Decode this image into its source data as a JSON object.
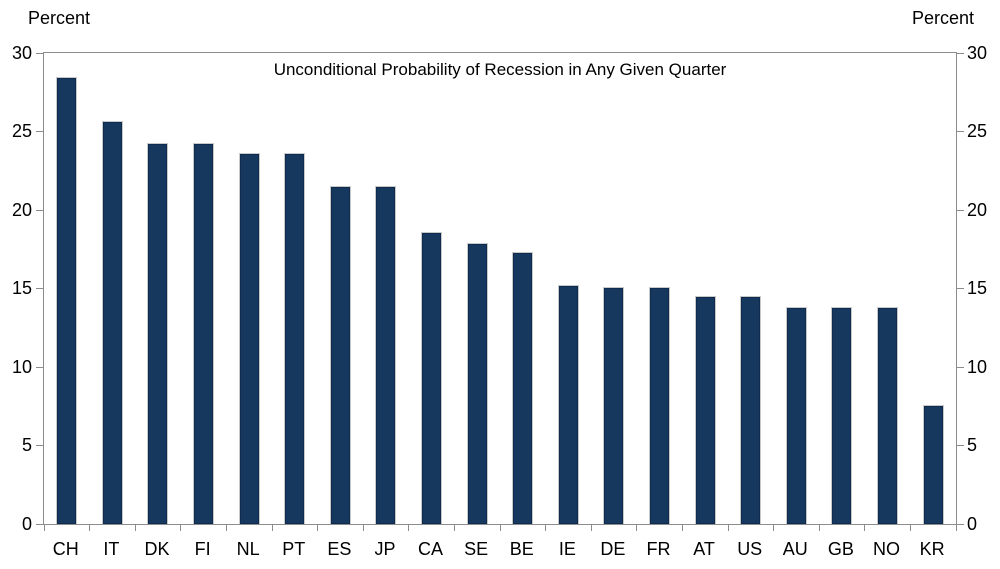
{
  "chart_data": {
    "type": "bar",
    "title": "Unconditional Probability of Recession in Any Given Quarter",
    "y_axis_unit_left": "Percent",
    "y_axis_unit_right": "Percent",
    "categories": [
      "CH",
      "IT",
      "DK",
      "FI",
      "NL",
      "PT",
      "ES",
      "JP",
      "CA",
      "SE",
      "BE",
      "IE",
      "DE",
      "FR",
      "AT",
      "US",
      "AU",
      "GB",
      "NO",
      "KR"
    ],
    "values": [
      28.5,
      25.7,
      24.3,
      24.3,
      23.6,
      23.6,
      21.5,
      21.5,
      18.6,
      17.9,
      17.3,
      15.2,
      15.1,
      15.1,
      14.5,
      14.5,
      13.8,
      13.8,
      13.8,
      7.6
    ],
    "ylim": [
      0,
      30
    ],
    "yticks": [
      0,
      5,
      10,
      15,
      20,
      25,
      30
    ],
    "bar_color": "#16375E",
    "bar_border_color": "#C9C9C9",
    "axis_color": "#8C8C8C",
    "text_color": "#000000",
    "grid": "off",
    "legend_position": "none"
  }
}
